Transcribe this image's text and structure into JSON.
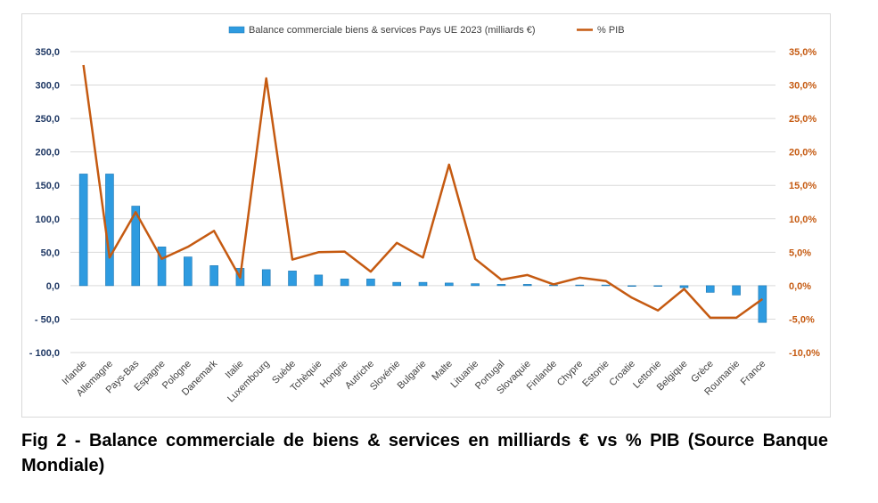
{
  "caption": "Fig 2 - Balance commerciale de biens & services en milliards € vs % PIB (Source Banque Mondiale)",
  "chart_data": {
    "type": "bar+line",
    "categories": [
      "Irlande",
      "Allemagne",
      "Pays-Bas",
      "Espagne",
      "Pologne",
      "Danemark",
      "Italie",
      "Luxembourg",
      "Suède",
      "Tchèquie",
      "Hongrie",
      "Autriche",
      "Slovénie",
      "Bulgarie",
      "Malte",
      "Lituanie",
      "Portugal",
      "Slovaquie",
      "Finlande",
      "Chypre",
      "Estonie",
      "Croatie",
      "Lettonie",
      "Belgique",
      "Grèce",
      "Roumanie",
      "France"
    ],
    "series": [
      {
        "name": "Balance commerciale biens & services Pays UE 2023 (milliards €)",
        "type": "bar",
        "axis": "left",
        "color": "#2e9be0",
        "values": [
          167,
          167,
          119,
          58,
          43,
          30,
          26,
          24,
          22,
          16,
          10,
          10,
          5,
          5,
          4,
          3,
          2,
          2,
          1,
          1,
          1,
          0,
          0,
          -3,
          -10,
          -14,
          -55
        ]
      },
      {
        "name": "% PIB",
        "type": "line",
        "axis": "right",
        "color": "#c55a11",
        "values": [
          33.0,
          4.2,
          11.0,
          4.0,
          5.8,
          8.2,
          1.2,
          31.0,
          3.9,
          5.0,
          5.1,
          2.1,
          6.4,
          4.2,
          18.1,
          4.0,
          0.9,
          1.6,
          0.2,
          1.2,
          0.7,
          -1.8,
          -3.7,
          -0.5,
          -4.8,
          -4.8,
          -2.0
        ]
      }
    ],
    "y_left": {
      "min": -100,
      "max": 350,
      "step": 50,
      "ticks": [
        "- 100,0",
        "- 50,0",
        "0,0",
        "50,0",
        "100,0",
        "150,0",
        "200,0",
        "250,0",
        "300,0",
        "350,0"
      ]
    },
    "y_right": {
      "min": -10,
      "max": 35,
      "step": 5,
      "ticks": [
        "-10,0%",
        "-5,0%",
        "0,0%",
        "5,0%",
        "10,0%",
        "15,0%",
        "20,0%",
        "25,0%",
        "30,0%",
        "35,0%"
      ]
    },
    "grid": true,
    "legend": "top-center"
  }
}
